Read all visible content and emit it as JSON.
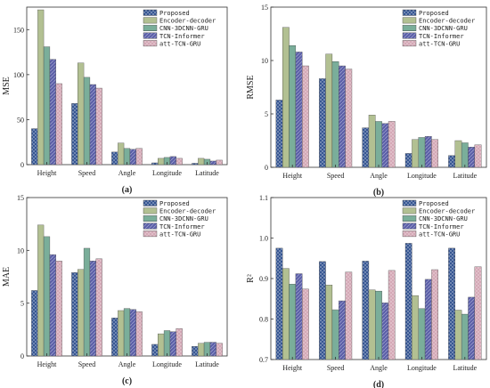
{
  "colors": {
    "Proposed": "#2a4c8c",
    "Encoder-decoder": "#a4b47e",
    "CNN-3DCNN-GRU": "#5f9e86",
    "TCN-Informer": "#5b5fa8",
    "att-TCN-GRU": "#d4a8b6"
  },
  "chart_data": [
    {
      "panel": "(a)",
      "type": "bar",
      "ylabel": "MSE",
      "categories": [
        "Height",
        "Speed",
        "Angle",
        "Longitude",
        "Latitude"
      ],
      "ylim": [
        0,
        175
      ],
      "yticks": [
        0,
        50,
        100,
        150
      ],
      "legend_position": "top-right",
      "series": [
        {
          "name": "Proposed",
          "values": [
            40,
            68,
            14,
            2,
            1.5
          ]
        },
        {
          "name": "Encoder-decoder",
          "values": [
            172,
            113,
            24,
            7,
            7
          ]
        },
        {
          "name": "CNN-3DCNN-GRU",
          "values": [
            131,
            97,
            18,
            8,
            6
          ]
        },
        {
          "name": "TCN-Informer",
          "values": [
            117,
            89,
            17,
            9,
            4
          ]
        },
        {
          "name": "att-TCN-GRU",
          "values": [
            90,
            85,
            18,
            7,
            5
          ]
        }
      ]
    },
    {
      "panel": "(b)",
      "type": "bar",
      "ylabel": "RMSE",
      "categories": [
        "Height",
        "Speed",
        "Angle",
        "Longitude",
        "Latitude"
      ],
      "ylim": [
        0,
        15
      ],
      "yticks": [
        0,
        5,
        10,
        15
      ],
      "legend_position": "top-right",
      "series": [
        {
          "name": "Proposed",
          "values": [
            6.3,
            8.3,
            3.7,
            1.3,
            1.1
          ]
        },
        {
          "name": "Encoder-decoder",
          "values": [
            13.1,
            10.6,
            4.9,
            2.6,
            2.5
          ]
        },
        {
          "name": "CNN-3DCNN-GRU",
          "values": [
            11.4,
            9.9,
            4.3,
            2.8,
            2.3
          ]
        },
        {
          "name": "TCN-Informer",
          "values": [
            10.8,
            9.5,
            4.1,
            2.9,
            1.9
          ]
        },
        {
          "name": "att-TCN-GRU",
          "values": [
            9.5,
            9.2,
            4.3,
            2.6,
            2.1
          ]
        }
      ]
    },
    {
      "panel": "(c)",
      "type": "bar",
      "ylabel": "MAE",
      "categories": [
        "Height",
        "Speed",
        "Angle",
        "Longitude",
        "Latitude"
      ],
      "ylim": [
        0,
        15
      ],
      "yticks": [
        0,
        5,
        10,
        15
      ],
      "legend_position": "top-right",
      "series": [
        {
          "name": "Proposed",
          "values": [
            6.2,
            7.9,
            3.6,
            1.1,
            0.9
          ]
        },
        {
          "name": "Encoder-decoder",
          "values": [
            12.4,
            8.2,
            4.3,
            2.1,
            1.2
          ]
        },
        {
          "name": "CNN-3DCNN-GRU",
          "values": [
            11.3,
            10.2,
            4.5,
            2.4,
            1.3
          ]
        },
        {
          "name": "TCN-Informer",
          "values": [
            9.6,
            9.0,
            4.4,
            2.3,
            1.3
          ]
        },
        {
          "name": "att-TCN-GRU",
          "values": [
            9.0,
            9.2,
            4.2,
            2.6,
            1.2
          ]
        }
      ]
    },
    {
      "panel": "(d)",
      "type": "bar",
      "ylabel": "R²",
      "categories": [
        "Height",
        "Speed",
        "Angle",
        "Longitude",
        "Latitude"
      ],
      "ylim": [
        0.7,
        1.1
      ],
      "yticks": [
        0.7,
        0.8,
        0.9,
        1.0,
        1.1
      ],
      "tick_decimals": 1,
      "legend_position": "top-right",
      "series": [
        {
          "name": "Proposed",
          "values": [
            0.975,
            0.942,
            0.943,
            0.987,
            0.975
          ]
        },
        {
          "name": "Encoder-decoder",
          "values": [
            0.925,
            0.884,
            0.872,
            0.858,
            0.822
          ]
        },
        {
          "name": "CNN-3DCNN-GRU",
          "values": [
            0.886,
            0.823,
            0.869,
            0.826,
            0.812
          ]
        },
        {
          "name": "TCN-Informer",
          "values": [
            0.912,
            0.845,
            0.84,
            0.898,
            0.854
          ]
        },
        {
          "name": "att-TCN-GRU",
          "values": [
            0.874,
            0.916,
            0.92,
            0.922,
            0.929
          ]
        }
      ]
    }
  ]
}
